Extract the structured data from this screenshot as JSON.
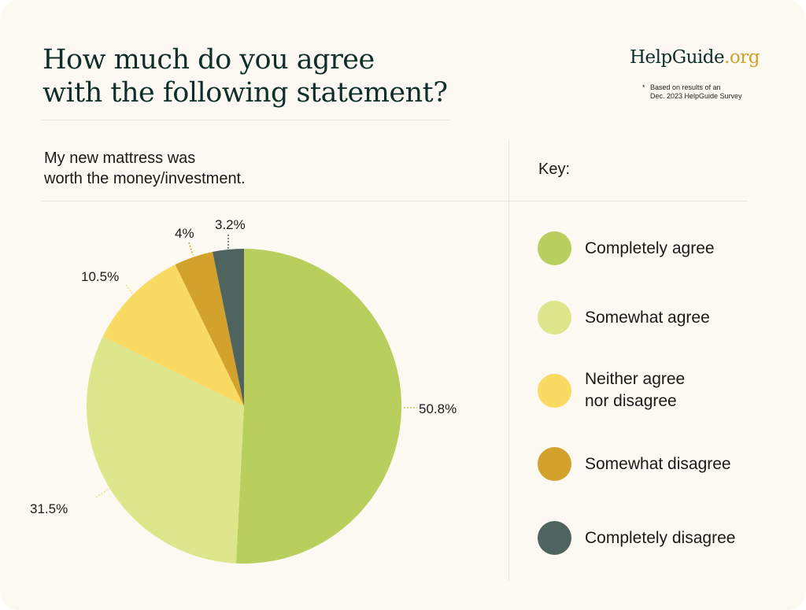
{
  "header": {
    "title_line1": "How much do you agree",
    "title_line2": "with the following statement?",
    "brand_name": "HelpGuide",
    "brand_tld": ".org",
    "note_star": "*",
    "note_line1": "Based on results of an",
    "note_line2": "Dec. 2023 HelpGuide Survey"
  },
  "statement": {
    "line1": "My new mattress was",
    "line2": "worth the money/investment."
  },
  "key_label": "Key:",
  "chart_data": {
    "type": "pie",
    "title": "How much do you agree with the following statement?",
    "subtitle": "My new mattress was worth the money/investment.",
    "legend_position": "right",
    "start_angle": "12 o'clock, clockwise",
    "slices": [
      {
        "label": "Completely agree",
        "value": 50.8,
        "display": "50.8%",
        "color": "#b8cf5e"
      },
      {
        "label": "Somewhat agree",
        "value": 31.5,
        "display": "31.5%",
        "color": "#dde68a"
      },
      {
        "label": "Neither agree\nnor disagree",
        "value": 10.5,
        "display": "10.5%",
        "color": "#f9da63"
      },
      {
        "label": "Somewhat disagree",
        "value": 4.0,
        "display": "4%",
        "color": "#d3a22c"
      },
      {
        "label": "Completely disagree",
        "value": 3.2,
        "display": "3.2%",
        "color": "#50645f"
      }
    ]
  }
}
